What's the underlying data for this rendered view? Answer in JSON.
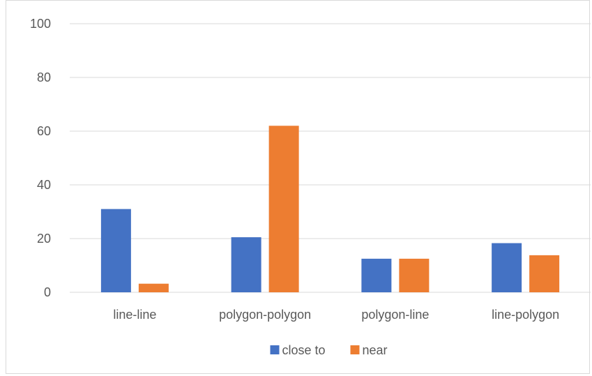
{
  "chart_data": {
    "type": "bar",
    "categories": [
      "line-line",
      "polygon-polygon",
      "polygon-line",
      "line-polygon"
    ],
    "series": [
      {
        "name": "close to",
        "values": [
          31,
          20.5,
          12.5,
          18.3
        ],
        "color": "#4472C4"
      },
      {
        "name": "near",
        "values": [
          3.2,
          62,
          12.5,
          13.8
        ],
        "color": "#ED7D31"
      }
    ],
    "yticks": [
      0,
      20,
      40,
      60,
      80,
      100
    ],
    "ylim": [
      0,
      100
    ],
    "title": "",
    "xlabel": "",
    "ylabel": "",
    "grid": true,
    "legend_position": "bottom",
    "gridline_color": "#d9d9d9",
    "tick_label_color": "#595959"
  }
}
